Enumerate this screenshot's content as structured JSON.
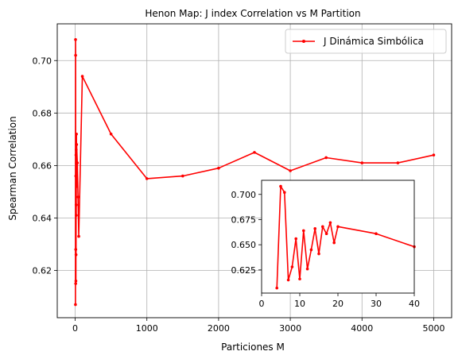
{
  "chart_data": [
    {
      "type": "line",
      "title": "Henon Map: J index Correlation vs M Partition",
      "xlabel": "Particiones M",
      "ylabel": "Spearman Correlation",
      "xlim": [
        -250,
        5250
      ],
      "ylim": [
        0.602,
        0.714
      ],
      "x_ticks": [
        0,
        1000,
        2000,
        3000,
        4000,
        5000
      ],
      "y_ticks": [
        0.62,
        0.64,
        0.66,
        0.68,
        0.7
      ],
      "x_tick_labels": [
        "0",
        "1000",
        "2000",
        "3000",
        "4000",
        "5000"
      ],
      "y_tick_labels": [
        "0.62",
        "0.64",
        "0.66",
        "0.68",
        "0.70"
      ],
      "grid": true,
      "legend_position": "top-right",
      "series": [
        {
          "name": "J Dinámica Simbólica",
          "color": "#ff0000",
          "x": [
            4,
            5,
            6,
            7,
            8,
            9,
            10,
            11,
            12,
            13,
            14,
            15,
            16,
            17,
            18,
            19,
            20,
            30,
            40,
            50,
            100,
            500,
            1000,
            1500,
            2000,
            2500,
            3000,
            3500,
            4000,
            4500,
            5000
          ],
          "y": [
            0.607,
            0.708,
            0.702,
            0.615,
            0.628,
            0.656,
            0.616,
            0.664,
            0.626,
            0.645,
            0.666,
            0.641,
            0.668,
            0.661,
            0.672,
            0.652,
            0.668,
            0.661,
            0.648,
            0.633,
            0.694,
            0.672,
            0.655,
            0.656,
            0.659,
            0.665,
            0.658,
            0.663,
            0.661,
            0.661,
            0.664
          ]
        }
      ]
    },
    {
      "type": "line",
      "title": "",
      "xlabel": "",
      "ylabel": "",
      "inset": true,
      "xlim": [
        0,
        40
      ],
      "ylim": [
        0.602,
        0.714
      ],
      "x_ticks": [
        0,
        10,
        20,
        30,
        40
      ],
      "y_ticks": [
        0.625,
        0.65,
        0.675,
        0.7
      ],
      "x_tick_labels": [
        "0",
        "10",
        "20",
        "30",
        "40"
      ],
      "y_tick_labels": [
        "0.625",
        "0.650",
        "0.675",
        "0.700"
      ],
      "grid": false,
      "series": [
        {
          "color": "#ff0000",
          "x": [
            4,
            5,
            6,
            7,
            8,
            9,
            10,
            11,
            12,
            13,
            14,
            15,
            16,
            17,
            18,
            19,
            20,
            30,
            40
          ],
          "y": [
            0.607,
            0.708,
            0.702,
            0.615,
            0.628,
            0.656,
            0.616,
            0.664,
            0.626,
            0.645,
            0.666,
            0.641,
            0.668,
            0.661,
            0.672,
            0.652,
            0.668,
            0.661,
            0.648
          ]
        }
      ]
    }
  ]
}
